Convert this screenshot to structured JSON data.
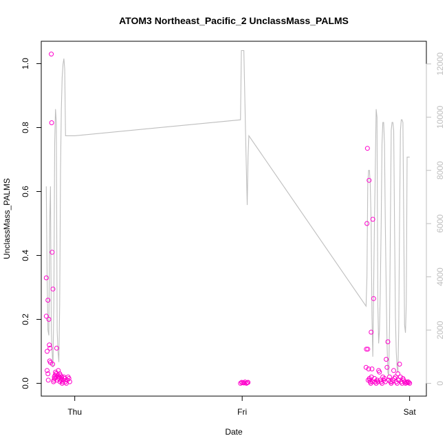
{
  "chart_data": {
    "type": "scatter",
    "title": "ATOM3 Northeast_Pacific_2 UnclassMass_PALMS",
    "xlabel": "Date",
    "ylabel": "UnclassMass_PALMS",
    "x_ticks": [
      "Thu",
      "Fri",
      "Sat"
    ],
    "x_tick_values": [
      0,
      1,
      2
    ],
    "xlim": [
      -0.2,
      2.1
    ],
    "ylim": [
      -0.04,
      1.07
    ],
    "y_ticks": [
      0.0,
      0.2,
      0.4,
      0.6,
      0.8,
      1.0
    ],
    "y_tick_labels": [
      "0.0",
      "0.2",
      "0.4",
      "0.6",
      "0.8",
      "1.0"
    ],
    "y2lim": [
      -480,
      12850
    ],
    "y2_ticks": [
      0,
      2000,
      4000,
      6000,
      8000,
      10000,
      12000
    ],
    "y2_tick_labels": [
      "0",
      "2000",
      "4000",
      "6000",
      "8000",
      "10000",
      "12000"
    ],
    "colors": {
      "points": "#ff00cc",
      "altitude_line": "#bebebe",
      "right_axis": "#bebebe",
      "axis": "#000000"
    },
    "series": [
      {
        "kind": "points",
        "x": [
          -0.17,
          -0.17,
          -0.165,
          -0.165,
          -0.16,
          -0.16,
          -0.158,
          -0.155,
          -0.152,
          -0.15,
          -0.148,
          -0.145,
          -0.14,
          -0.138,
          -0.135,
          -0.132,
          -0.13,
          -0.127,
          -0.125,
          -0.122,
          -0.12,
          -0.118,
          -0.115,
          -0.112,
          -0.11,
          -0.108,
          -0.105,
          -0.1,
          -0.098,
          -0.095,
          -0.093,
          -0.09,
          -0.088,
          -0.085,
          -0.083,
          -0.08,
          -0.078,
          -0.075,
          -0.072,
          -0.07,
          -0.065,
          -0.06,
          -0.055,
          -0.05,
          -0.045,
          -0.04,
          -0.035,
          -0.03,
          0.99,
          0.997,
          1.003,
          1.01,
          1.017,
          1.025,
          1.03,
          1.035,
          1.74,
          1.742,
          1.745,
          1.748,
          1.75,
          1.752,
          1.755,
          1.758,
          1.76,
          1.762,
          1.765,
          1.768,
          1.77,
          1.772,
          1.775,
          1.778,
          1.78,
          1.785,
          1.79,
          1.795,
          1.8,
          1.805,
          1.81,
          1.815,
          1.82,
          1.825,
          1.83,
          1.835,
          1.84,
          1.845,
          1.85,
          1.855,
          1.86,
          1.865,
          1.87,
          1.875,
          1.88,
          1.885,
          1.89,
          1.895,
          1.9,
          1.905,
          1.91,
          1.915,
          1.92,
          1.925,
          1.93,
          1.935,
          1.94,
          1.945,
          1.95,
          1.955,
          1.96,
          1.965,
          1.97,
          1.975,
          1.98,
          1.985,
          1.99,
          1.995,
          2.0
        ],
        "y": [
          0.33,
          0.21,
          0.1,
          0.04,
          0.03,
          0.26,
          0.01,
          0.2,
          0.12,
          0.07,
          0.11,
          0.065,
          1.03,
          0.815,
          0.41,
          0.06,
          0.295,
          0.005,
          0.01,
          0.02,
          0.015,
          0.025,
          0.035,
          0.03,
          0.02,
          0.11,
          0.01,
          0.025,
          0.04,
          0.015,
          0.02,
          0.03,
          0.005,
          0.025,
          0.01,
          0.015,
          0.02,
          0.0,
          0.005,
          0.01,
          0.02,
          0.015,
          0.005,
          0.0,
          0.01,
          0.02,
          0.015,
          0.005,
          0.0,
          0.003,
          0.002,
          0.001,
          0.004,
          0.0,
          0.002,
          0.003,
          0.05,
          0.107,
          0.5,
          0.735,
          0.107,
          0.01,
          0.045,
          0.635,
          0.015,
          0.01,
          0.005,
          0.0,
          0.16,
          0.02,
          0.045,
          0.005,
          0.513,
          0.265,
          0.015,
          0.005,
          0.0,
          0.01,
          0.005,
          0.04,
          0.035,
          0.01,
          0.005,
          0.0,
          0.02,
          0.01,
          0.015,
          0.005,
          0.075,
          0.05,
          0.13,
          0.01,
          0.02,
          0.005,
          0.0,
          0.005,
          0.01,
          0.04,
          0.015,
          0.02,
          0.005,
          0.0,
          0.03,
          0.01,
          0.06,
          0.02,
          0.005,
          0.0,
          0.015,
          0.01,
          0.005,
          0.0,
          0.003,
          0.002,
          0.005,
          0.003,
          0.0
        ]
      },
      {
        "kind": "line",
        "axis": "right",
        "x": [
          -0.17,
          -0.165,
          -0.16,
          -0.155,
          -0.15,
          -0.145,
          -0.14,
          -0.135,
          -0.13,
          -0.125,
          -0.12,
          -0.115,
          -0.11,
          -0.105,
          -0.1,
          -0.095,
          -0.09,
          -0.085,
          -0.08,
          -0.075,
          -0.07,
          -0.065,
          -0.06,
          -0.055,
          -0.05,
          -0.045,
          -0.04,
          -0.035,
          -0.03,
          0.0,
          0.99,
          0.995,
          1.0,
          1.01,
          1.02,
          1.025,
          1.03,
          1.035,
          1.04,
          1.74,
          1.745,
          1.75,
          1.755,
          1.76,
          1.765,
          1.77,
          1.775,
          1.78,
          1.785,
          1.79,
          1.795,
          1.8,
          1.805,
          1.81,
          1.815,
          1.82,
          1.825,
          1.83,
          1.835,
          1.84,
          1.845,
          1.85,
          1.855,
          1.86,
          1.865,
          1.87,
          1.875,
          1.88,
          1.885,
          1.89,
          1.895,
          1.9,
          1.905,
          1.91,
          1.915,
          1.92,
          1.925,
          1.93,
          1.935,
          1.94,
          1.945,
          1.95,
          1.955,
          1.96,
          1.965,
          1.97,
          1.975,
          1.98,
          1.985,
          1.99,
          1.995,
          2.0
        ],
        "y": [
          7400,
          4000,
          2000,
          1800,
          6000,
          7400,
          2000,
          1200,
          600,
          3000,
          9000,
          10300,
          9800,
          2000,
          1200,
          800,
          3000,
          8000,
          10300,
          11500,
          12000,
          12200,
          11800,
          9300,
          9300,
          9300,
          9300,
          9300,
          9300,
          9300,
          9900,
          12500,
          12500,
          12500,
          9500,
          8000,
          6700,
          8500,
          9300,
          2900,
          4000,
          7500,
          8000,
          8000,
          7500,
          6000,
          2500,
          1000,
          3500,
          6000,
          8000,
          10300,
          10000,
          3000,
          1500,
          2000,
          3500,
          6000,
          9000,
          9800,
          9800,
          9000,
          6000,
          3500,
          1500,
          400,
          300,
          2000,
          6000,
          9500,
          9800,
          9800,
          9500,
          6000,
          2500,
          1200,
          600,
          400,
          2000,
          6000,
          9500,
          9900,
          9900,
          9800,
          6000,
          2200,
          1900,
          3000,
          8500,
          8500,
          8500,
          8500
        ]
      }
    ]
  }
}
